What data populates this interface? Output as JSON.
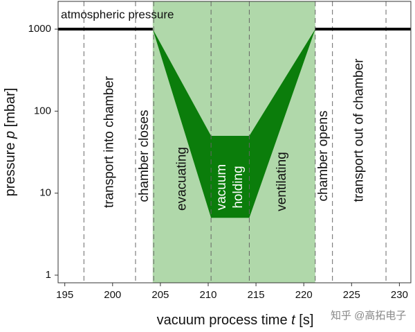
{
  "chart_data": {
    "type": "area",
    "x_label": {
      "text": "vacuum process time",
      "symbol": "t",
      "unit": "[s]"
    },
    "y_label": {
      "text": "pressure",
      "symbol": "p",
      "unit": "[mbar]"
    },
    "log_y": true,
    "xlim": [
      194.3,
      231.2
    ],
    "ylim": [
      0.807,
      2180
    ],
    "xticks": [
      195,
      200,
      205,
      210,
      215,
      220,
      225,
      230
    ],
    "yticks": [
      1,
      10,
      100,
      1000
    ],
    "annotation": "atmospheric pressure",
    "shade": {
      "color": "#b0d8aa",
      "x": [
        204.2,
        221.2
      ]
    },
    "band": {
      "color": "#0b7d0b",
      "x": [
        204.2,
        210.3,
        214.3,
        221.2
      ],
      "upper": [
        1000,
        50,
        50,
        1000
      ],
      "lower": [
        1000,
        5,
        5,
        1000
      ]
    },
    "pressure_line": {
      "color": "#000000",
      "pieces": [
        {
          "x": [
            194.3,
            204.2
          ],
          "values": [
            1000,
            1000
          ]
        },
        {
          "x": [
            221.2,
            231.2
          ],
          "values": [
            1000,
            1000
          ]
        }
      ]
    },
    "phase_boundaries": [
      197,
      202.4,
      204.3,
      210.3,
      214.3,
      221.2,
      223,
      228.6
    ],
    "phases": [
      [
        "transport into chamber"
      ],
      [
        "chamber closes"
      ],
      [
        "evacuating"
      ],
      [
        "vacuum",
        "holding"
      ],
      [
        "ventilating"
      ],
      [
        "chamber opens"
      ],
      [
        "transport out of chamber"
      ]
    ],
    "watermark": "知乎 @高拓电子"
  }
}
